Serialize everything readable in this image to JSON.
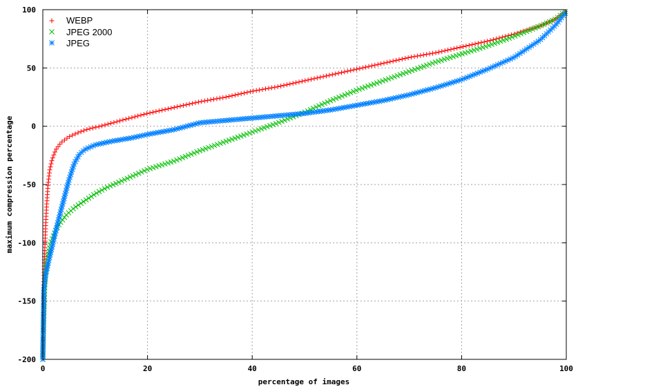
{
  "chart_data": {
    "type": "scatter",
    "title": "",
    "xlabel": "percentage of images",
    "ylabel": "maximum compression percentage",
    "xlim": [
      0,
      100
    ],
    "ylim": [
      -200,
      100
    ],
    "xticks": [
      "0",
      "20",
      "40",
      "60",
      "80",
      "100"
    ],
    "yticks": [
      "-200",
      "-150",
      "-100",
      "-50",
      "0",
      "50",
      "100"
    ],
    "grid": true,
    "legend_position": "top-left",
    "series": [
      {
        "name": "WEBP",
        "color": "#ff0000",
        "marker": "plus",
        "points": [
          [
            0,
            -200
          ],
          [
            0.1,
            -170
          ],
          [
            0.2,
            -140
          ],
          [
            0.3,
            -115
          ],
          [
            0.5,
            -90
          ],
          [
            0.7,
            -70
          ],
          [
            1,
            -50
          ],
          [
            1.3,
            -38
          ],
          [
            1.8,
            -28
          ],
          [
            2.5,
            -20
          ],
          [
            3.5,
            -14
          ],
          [
            5,
            -9
          ],
          [
            7,
            -5
          ],
          [
            9,
            -2
          ],
          [
            11,
            0
          ],
          [
            15,
            5
          ],
          [
            20,
            11
          ],
          [
            25,
            16
          ],
          [
            30,
            21
          ],
          [
            35,
            25
          ],
          [
            40,
            30
          ],
          [
            45,
            34
          ],
          [
            50,
            39
          ],
          [
            55,
            44
          ],
          [
            60,
            49
          ],
          [
            65,
            54
          ],
          [
            70,
            59
          ],
          [
            75,
            63
          ],
          [
            80,
            68
          ],
          [
            85,
            73
          ],
          [
            90,
            79
          ],
          [
            95,
            86
          ],
          [
            98,
            92
          ],
          [
            100,
            99
          ]
        ]
      },
      {
        "name": "JPEG 2000",
        "color": "#00c000",
        "marker": "cross",
        "points": [
          [
            0,
            -200
          ],
          [
            0.1,
            -180
          ],
          [
            0.2,
            -160
          ],
          [
            0.4,
            -135
          ],
          [
            0.8,
            -115
          ],
          [
            1.5,
            -100
          ],
          [
            2.5,
            -89
          ],
          [
            3.3,
            -83
          ],
          [
            4.5,
            -76
          ],
          [
            6,
            -70
          ],
          [
            8,
            -64
          ],
          [
            10,
            -58
          ],
          [
            12,
            -53
          ],
          [
            15,
            -47
          ],
          [
            20,
            -37
          ],
          [
            25,
            -30
          ],
          [
            30,
            -21
          ],
          [
            35,
            -13
          ],
          [
            40,
            -5
          ],
          [
            45,
            3
          ],
          [
            50,
            12
          ],
          [
            55,
            22
          ],
          [
            60,
            31
          ],
          [
            65,
            39
          ],
          [
            70,
            47
          ],
          [
            75,
            55
          ],
          [
            80,
            62
          ],
          [
            85,
            69
          ],
          [
            90,
            77
          ],
          [
            95,
            86
          ],
          [
            98,
            92
          ],
          [
            100,
            99
          ]
        ]
      },
      {
        "name": "JPEG",
        "color": "#0080ff",
        "marker": "star",
        "points": [
          [
            0,
            -200
          ],
          [
            0.1,
            -170
          ],
          [
            0.2,
            -140
          ],
          [
            0.5,
            -128
          ],
          [
            1,
            -118
          ],
          [
            2,
            -99
          ],
          [
            3,
            -80
          ],
          [
            4,
            -63
          ],
          [
            5,
            -46
          ],
          [
            6,
            -32
          ],
          [
            7,
            -24
          ],
          [
            8,
            -20
          ],
          [
            10,
            -16
          ],
          [
            13,
            -13
          ],
          [
            17,
            -10
          ],
          [
            20,
            -7
          ],
          [
            25,
            -3
          ],
          [
            30,
            3
          ],
          [
            35,
            5
          ],
          [
            40,
            7
          ],
          [
            45,
            9
          ],
          [
            50,
            11
          ],
          [
            55,
            14
          ],
          [
            60,
            18
          ],
          [
            65,
            22
          ],
          [
            70,
            27
          ],
          [
            75,
            33
          ],
          [
            80,
            40
          ],
          [
            85,
            49
          ],
          [
            90,
            59
          ],
          [
            95,
            74
          ],
          [
            98,
            87
          ],
          [
            100,
            98
          ]
        ]
      }
    ]
  }
}
